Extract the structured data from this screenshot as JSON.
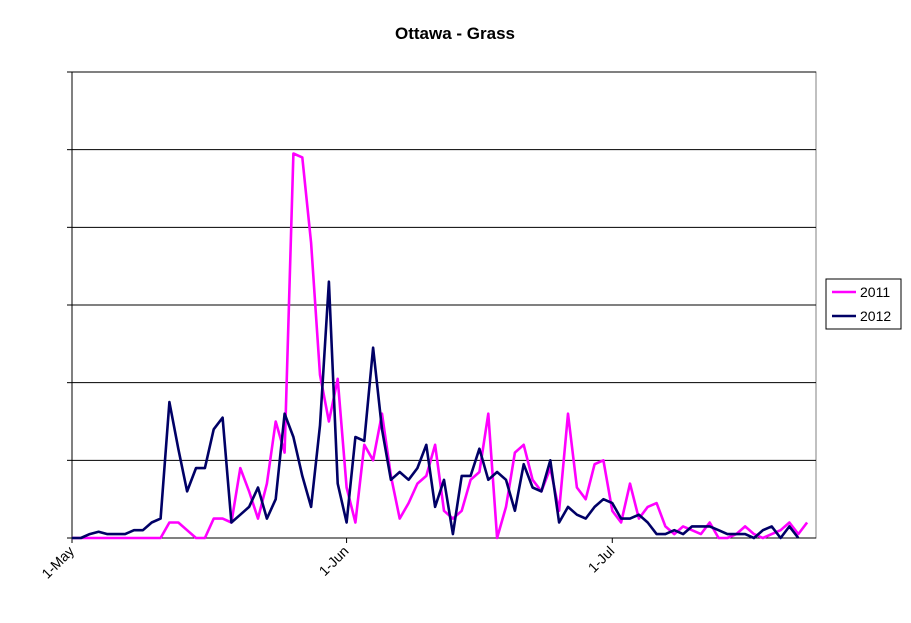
{
  "chart_data": {
    "type": "line",
    "title": "Ottawa - Grass",
    "xlabel": "",
    "ylabel": "",
    "x_start": "1-May",
    "x_ticks": [
      {
        "label": "1-May",
        "day": 0
      },
      {
        "label": "1-Jun",
        "day": 31
      },
      {
        "label": "1-Jul",
        "day": 61
      }
    ],
    "xlim": [
      0,
      84
    ],
    "ylim": [
      0,
      6
    ],
    "y_gridlines": [
      1,
      2,
      3,
      4,
      5,
      6
    ],
    "grid": true,
    "legend_position": "right",
    "colors": {
      "2011": "#ff00ff",
      "2012": "#000066"
    },
    "series": [
      {
        "name": "2011",
        "color": "#ff00ff",
        "values": [
          0,
          0,
          0,
          0,
          0,
          0,
          0,
          0,
          0,
          0,
          0,
          0.2,
          0.2,
          0.1,
          0,
          0,
          0.25,
          0.25,
          0.2,
          0.9,
          0.6,
          0.25,
          0.7,
          1.5,
          1.1,
          4.95,
          4.9,
          3.8,
          2.1,
          1.5,
          2.05,
          0.65,
          0.2,
          1.2,
          1.0,
          1.6,
          0.8,
          0.25,
          0.45,
          0.7,
          0.8,
          1.2,
          0.35,
          0.25,
          0.35,
          0.75,
          0.85,
          1.6,
          0,
          0.4,
          1.1,
          1.2,
          0.75,
          0.6,
          0.9,
          0.35,
          1.6,
          0.65,
          0.5,
          0.95,
          1.0,
          0.35,
          0.2,
          0.7,
          0.25,
          0.4,
          0.45,
          0.15,
          0.05,
          0.15,
          0.1,
          0.05,
          0.2,
          0,
          0,
          0.05,
          0.15,
          0.05,
          0,
          0.05,
          0.1,
          0.2,
          0.05,
          0.2
        ]
      },
      {
        "name": "2012",
        "color": "#000066",
        "values": [
          0,
          0,
          0.05,
          0.08,
          0.05,
          0.05,
          0.05,
          0.1,
          0.1,
          0.2,
          0.25,
          1.75,
          1.15,
          0.6,
          0.9,
          0.9,
          1.4,
          1.55,
          0.2,
          0.3,
          0.4,
          0.65,
          0.25,
          0.5,
          1.6,
          1.3,
          0.8,
          0.4,
          1.45,
          3.3,
          0.7,
          0.2,
          1.3,
          1.25,
          2.45,
          1.4,
          0.75,
          0.85,
          0.75,
          0.9,
          1.2,
          0.4,
          0.75,
          0.05,
          0.8,
          0.8,
          1.15,
          0.75,
          0.85,
          0.75,
          0.35,
          0.95,
          0.65,
          0.6,
          1.0,
          0.2,
          0.4,
          0.3,
          0.25,
          0.4,
          0.5,
          0.45,
          0.25,
          0.25,
          0.3,
          0.2,
          0.05,
          0.05,
          0.1,
          0.05,
          0.15,
          0.15,
          0.15,
          0.1,
          0.05,
          0.05,
          0.05,
          0,
          0.1,
          0.15,
          0,
          0.15,
          0
        ]
      }
    ]
  }
}
